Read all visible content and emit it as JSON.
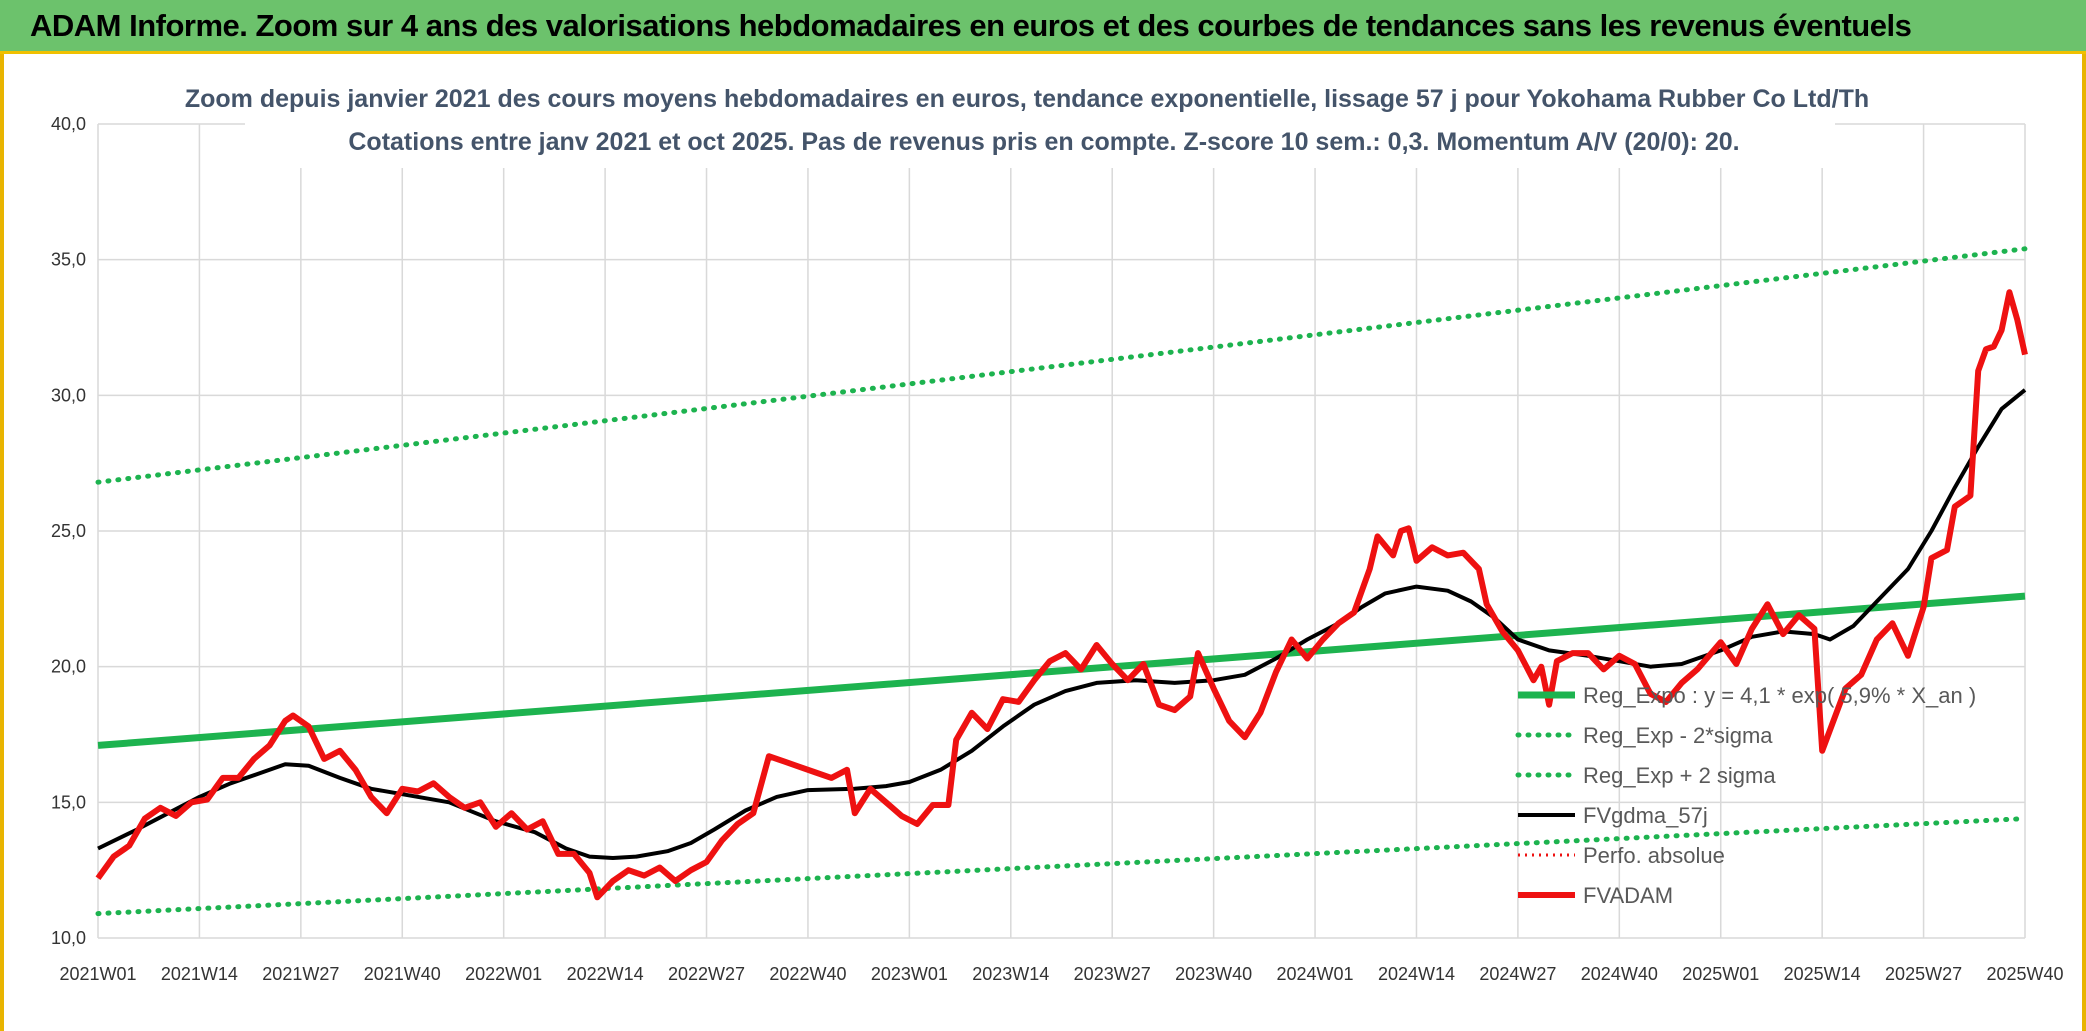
{
  "banner": {
    "title": "ADAM Informe. Zoom sur 4 ans des valorisations hebdomadaires en euros et des courbes de tendances sans les revenus éventuels"
  },
  "colors": {
    "banner_bg": "#6cc26c",
    "trend": "#1db34f",
    "band": "#1db34f",
    "smooth": "#000000",
    "price": "#ee1111",
    "perf": "#ee1111"
  },
  "chart_data": {
    "type": "line",
    "title": "Zoom depuis janvier 2021 des cours moyens hebdomadaires en euros, tendance exponentielle, lissage 57 j pour Yokohama Rubber Co Ltd/Th",
    "subtitle": "Cotations entre janv 2021 et oct 2025. Pas de revenus pris en compte. Z-score 10 sem.: 0,3. Momentum A/V (20/0): 20.",
    "x_ticks": [
      "2021W01",
      "2021W14",
      "2021W27",
      "2021W40",
      "2022W01",
      "2022W14",
      "2022W27",
      "2022W40",
      "2023W01",
      "2023W14",
      "2023W27",
      "2023W40",
      "2024W01",
      "2024W14",
      "2024W27",
      "2024W40",
      "2025W01",
      "2025W14",
      "2025W27",
      "2025W40"
    ],
    "y_ticks": [
      "10,0",
      "15,0",
      "20,0",
      "25,0",
      "30,0",
      "35,0",
      "40,0"
    ],
    "ylim": [
      10,
      40
    ],
    "grid": true,
    "legend_position": "bottom-right",
    "series": [
      {
        "name": "Reg_Expo : y = 4,1 * exp( 5,9% *  X_an )",
        "style": "solid-thick",
        "points": [
          [
            "2021W01",
            17.1
          ],
          [
            "2025W40",
            22.6
          ]
        ]
      },
      {
        "name": "Reg_Exp - 2*sigma",
        "style": "dotted",
        "points": [
          [
            "2021W01",
            10.9
          ],
          [
            "2025W40",
            14.4
          ]
        ]
      },
      {
        "name": "Reg_Exp + 2 sigma",
        "style": "dotted",
        "points": [
          [
            "2021W01",
            26.8
          ],
          [
            "2025W40",
            35.4
          ]
        ]
      },
      {
        "name": "FVgdma_57j",
        "style": "solid",
        "points": [
          [
            "2021W01",
            13.3
          ],
          [
            "2021W06",
            14.0
          ],
          [
            "2021W10",
            14.6
          ],
          [
            "2021W14",
            15.2
          ],
          [
            "2021W18",
            15.7
          ],
          [
            "2021W22",
            16.1
          ],
          [
            "2021W25",
            16.4
          ],
          [
            "2021W28",
            16.35
          ],
          [
            "2021W32",
            15.9
          ],
          [
            "2021W36",
            15.5
          ],
          [
            "2021W40",
            15.3
          ],
          [
            "2021W46",
            15.0
          ],
          [
            "2021W52",
            14.3
          ],
          [
            "2022W05",
            13.9
          ],
          [
            "2022W09",
            13.3
          ],
          [
            "2022W12",
            13.0
          ],
          [
            "2022W15",
            12.95
          ],
          [
            "2022W18",
            13.0
          ],
          [
            "2022W22",
            13.2
          ],
          [
            "2022W25",
            13.5
          ],
          [
            "2022W28",
            14.0
          ],
          [
            "2022W32",
            14.7
          ],
          [
            "2022W36",
            15.2
          ],
          [
            "2022W40",
            15.45
          ],
          [
            "2022W46",
            15.5
          ],
          [
            "2022W50",
            15.6
          ],
          [
            "2023W01",
            15.75
          ],
          [
            "2023W05",
            16.2
          ],
          [
            "2023W09",
            16.9
          ],
          [
            "2023W13",
            17.8
          ],
          [
            "2023W17",
            18.6
          ],
          [
            "2023W21",
            19.1
          ],
          [
            "2023W25",
            19.4
          ],
          [
            "2023W30",
            19.5
          ],
          [
            "2023W35",
            19.4
          ],
          [
            "2023W40",
            19.5
          ],
          [
            "2023W44",
            19.7
          ],
          [
            "2023W48",
            20.3
          ],
          [
            "2023W52",
            21.0
          ],
          [
            "2024W04",
            21.6
          ],
          [
            "2024W07",
            22.2
          ],
          [
            "2024W10",
            22.7
          ],
          [
            "2024W14",
            22.95
          ],
          [
            "2024W18",
            22.8
          ],
          [
            "2024W21",
            22.4
          ],
          [
            "2024W24",
            21.8
          ],
          [
            "2024W27",
            21.0
          ],
          [
            "2024W31",
            20.6
          ],
          [
            "2024W36",
            20.4
          ],
          [
            "2024W40",
            20.2
          ],
          [
            "2024W44",
            20.0
          ],
          [
            "2024W48",
            20.1
          ],
          [
            "2025W01",
            20.6
          ],
          [
            "2025W05",
            21.1
          ],
          [
            "2025W09",
            21.3
          ],
          [
            "2025W13",
            21.2
          ],
          [
            "2025W15",
            21.0
          ],
          [
            "2025W18",
            21.5
          ],
          [
            "2025W21",
            22.4
          ],
          [
            "2025W25",
            23.6
          ],
          [
            "2025W28",
            25.0
          ],
          [
            "2025W31",
            26.6
          ],
          [
            "2025W34",
            28.1
          ],
          [
            "2025W37",
            29.5
          ],
          [
            "2025W40",
            30.2
          ]
        ]
      },
      {
        "name": "Perfo. absolue",
        "style": "dotted-hidden",
        "points": []
      },
      {
        "name": "FVADAM",
        "style": "solid-thick",
        "points": [
          [
            "2021W01",
            12.2
          ],
          [
            "2021W03",
            13.0
          ],
          [
            "2021W05",
            13.4
          ],
          [
            "2021W07",
            14.4
          ],
          [
            "2021W09",
            14.8
          ],
          [
            "2021W11",
            14.5
          ],
          [
            "2021W13",
            15.0
          ],
          [
            "2021W15",
            15.1
          ],
          [
            "2021W17",
            15.9
          ],
          [
            "2021W19",
            15.9
          ],
          [
            "2021W21",
            16.6
          ],
          [
            "2021W23",
            17.1
          ],
          [
            "2021W25",
            18.0
          ],
          [
            "2021W26",
            18.2
          ],
          [
            "2021W28",
            17.8
          ],
          [
            "2021W30",
            16.6
          ],
          [
            "2021W32",
            16.9
          ],
          [
            "2021W34",
            16.2
          ],
          [
            "2021W36",
            15.2
          ],
          [
            "2021W38",
            14.6
          ],
          [
            "2021W40",
            15.5
          ],
          [
            "2021W42",
            15.4
          ],
          [
            "2021W44",
            15.7
          ],
          [
            "2021W46",
            15.2
          ],
          [
            "2021W48",
            14.8
          ],
          [
            "2021W50",
            15.0
          ],
          [
            "2021W52",
            14.1
          ],
          [
            "2022W02",
            14.6
          ],
          [
            "2022W04",
            14.0
          ],
          [
            "2022W06",
            14.3
          ],
          [
            "2022W08",
            13.1
          ],
          [
            "2022W10",
            13.1
          ],
          [
            "2022W12",
            12.4
          ],
          [
            "2022W13",
            11.5
          ],
          [
            "2022W15",
            12.1
          ],
          [
            "2022W17",
            12.5
          ],
          [
            "2022W19",
            12.3
          ],
          [
            "2022W21",
            12.6
          ],
          [
            "2022W23",
            12.1
          ],
          [
            "2022W25",
            12.5
          ],
          [
            "2022W27",
            12.8
          ],
          [
            "2022W29",
            13.6
          ],
          [
            "2022W31",
            14.2
          ],
          [
            "2022W33",
            14.6
          ],
          [
            "2022W35",
            16.7
          ],
          [
            "2022W37",
            16.5
          ],
          [
            "2022W39",
            16.3
          ],
          [
            "2022W41",
            16.1
          ],
          [
            "2022W43",
            15.9
          ],
          [
            "2022W45",
            16.2
          ],
          [
            "2022W46",
            14.6
          ],
          [
            "2022W48",
            15.5
          ],
          [
            "2022W50",
            15.0
          ],
          [
            "2022W52",
            14.5
          ],
          [
            "2023W02",
            14.2
          ],
          [
            "2023W04",
            14.9
          ],
          [
            "2023W06",
            14.9
          ],
          [
            "2023W07",
            17.3
          ],
          [
            "2023W09",
            18.3
          ],
          [
            "2023W11",
            17.7
          ],
          [
            "2023W13",
            18.8
          ],
          [
            "2023W15",
            18.7
          ],
          [
            "2023W17",
            19.5
          ],
          [
            "2023W19",
            20.2
          ],
          [
            "2023W21",
            20.5
          ],
          [
            "2023W23",
            19.9
          ],
          [
            "2023W25",
            20.8
          ],
          [
            "2023W27",
            20.1
          ],
          [
            "2023W29",
            19.5
          ],
          [
            "2023W31",
            20.1
          ],
          [
            "2023W33",
            18.6
          ],
          [
            "2023W35",
            18.4
          ],
          [
            "2023W37",
            18.9
          ],
          [
            "2023W38",
            20.5
          ],
          [
            "2023W40",
            19.2
          ],
          [
            "2023W42",
            18.0
          ],
          [
            "2023W44",
            17.4
          ],
          [
            "2023W46",
            18.3
          ],
          [
            "2023W48",
            19.8
          ],
          [
            "2023W50",
            21.0
          ],
          [
            "2023W52",
            20.3
          ],
          [
            "2024W02",
            21.0
          ],
          [
            "2024W04",
            21.6
          ],
          [
            "2024W06",
            22.0
          ],
          [
            "2024W08",
            23.6
          ],
          [
            "2024W09",
            24.8
          ],
          [
            "2024W11",
            24.1
          ],
          [
            "2024W12",
            25.0
          ],
          [
            "2024W13",
            25.1
          ],
          [
            "2024W14",
            23.9
          ],
          [
            "2024W16",
            24.4
          ],
          [
            "2024W18",
            24.1
          ],
          [
            "2024W20",
            24.2
          ],
          [
            "2024W22",
            23.6
          ],
          [
            "2024W23",
            22.3
          ],
          [
            "2024W25",
            21.3
          ],
          [
            "2024W27",
            20.6
          ],
          [
            "2024W29",
            19.5
          ],
          [
            "2024W30",
            20.0
          ],
          [
            "2024W31",
            18.6
          ],
          [
            "2024W32",
            20.2
          ],
          [
            "2024W34",
            20.5
          ],
          [
            "2024W36",
            20.5
          ],
          [
            "2024W38",
            19.9
          ],
          [
            "2024W40",
            20.4
          ],
          [
            "2024W42",
            20.1
          ],
          [
            "2024W44",
            19.0
          ],
          [
            "2024W46",
            18.7
          ],
          [
            "2024W48",
            19.4
          ],
          [
            "2024W50",
            19.9
          ],
          [
            "2025W01",
            20.9
          ],
          [
            "2025W03",
            20.1
          ],
          [
            "2025W05",
            21.4
          ],
          [
            "2025W07",
            22.3
          ],
          [
            "2025W09",
            21.2
          ],
          [
            "2025W11",
            21.9
          ],
          [
            "2025W13",
            21.4
          ],
          [
            "2025W14",
            16.9
          ],
          [
            "2025W17",
            19.2
          ],
          [
            "2025W19",
            19.7
          ],
          [
            "2025W21",
            21.0
          ],
          [
            "2025W23",
            21.6
          ],
          [
            "2025W25",
            20.4
          ],
          [
            "2025W27",
            22.2
          ],
          [
            "2025W28",
            24.0
          ],
          [
            "2025W30",
            24.3
          ],
          [
            "2025W31",
            25.9
          ],
          [
            "2025W32",
            26.1
          ],
          [
            "2025W33",
            26.3
          ],
          [
            "2025W34",
            30.9
          ],
          [
            "2025W35",
            31.7
          ],
          [
            "2025W36",
            31.8
          ],
          [
            "2025W37",
            32.4
          ],
          [
            "2025W38",
            33.8
          ],
          [
            "2025W39",
            32.8
          ],
          [
            "2025W40",
            31.5
          ]
        ]
      }
    ]
  }
}
